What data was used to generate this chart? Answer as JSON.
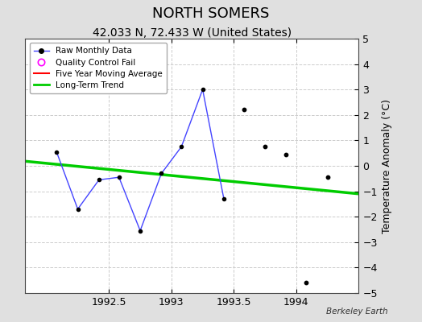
{
  "title": "NORTH SOMERS",
  "subtitle": "42.033 N, 72.433 W (United States)",
  "ylabel": "Temperature Anomaly (°C)",
  "attribution": "Berkeley Earth",
  "xlim": [
    1991.83,
    1994.5
  ],
  "ylim": [
    -5,
    5
  ],
  "yticks": [
    -5,
    -4,
    -3,
    -2,
    -1,
    0,
    1,
    2,
    3,
    4,
    5
  ],
  "xticks": [
    1992.5,
    1993.0,
    1993.5,
    1994.0
  ],
  "background_color": "#e0e0e0",
  "plot_bg_color": "#ffffff",
  "connected_x": [
    1992.08,
    1992.25,
    1992.42,
    1992.58,
    1992.75,
    1992.92,
    1993.08,
    1993.25,
    1993.42
  ],
  "connected_y": [
    0.55,
    -1.7,
    -0.55,
    -0.45,
    -2.55,
    -0.3,
    0.75,
    3.0,
    -1.3
  ],
  "raw_line_color": "#4444ff",
  "raw_marker_color": "#000000",
  "isolated_x": [
    1993.58,
    1993.75,
    1993.92,
    1994.08,
    1994.25
  ],
  "isolated_y": [
    2.2,
    0.75,
    0.45,
    -4.6,
    -0.45
  ],
  "trend_x": [
    1991.83,
    1994.5
  ],
  "trend_y": [
    0.18,
    -1.1
  ],
  "trend_color": "#00cc00",
  "trend_lw": 2.5,
  "ma_color": "#ff0000",
  "grid_color": "#cccccc",
  "grid_ls": "--",
  "title_fontsize": 13,
  "subtitle_fontsize": 10,
  "tick_fontsize": 9,
  "ylabel_fontsize": 9
}
